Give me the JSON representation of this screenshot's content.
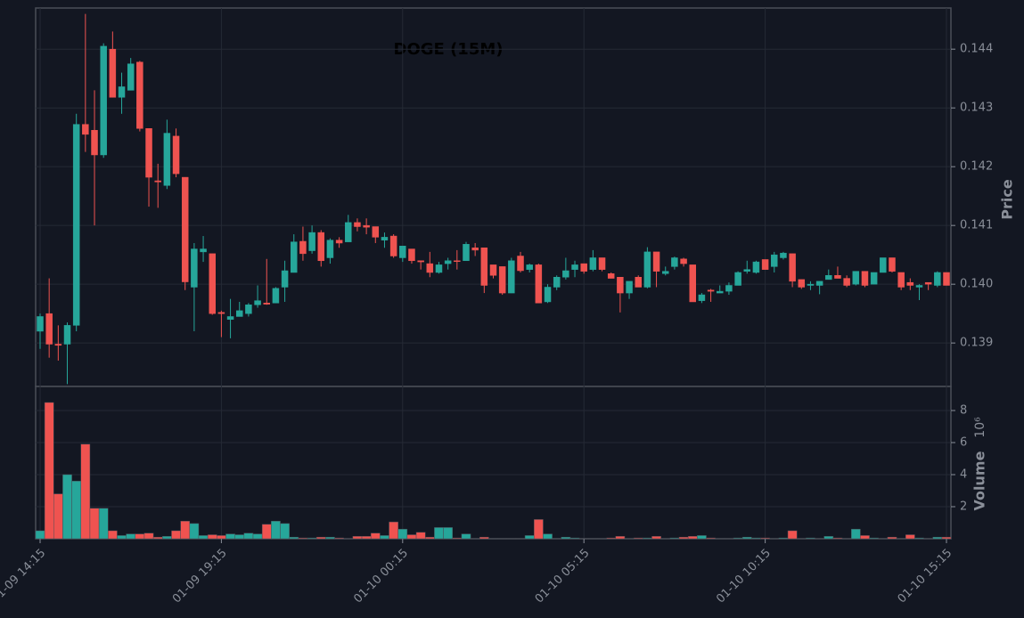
{
  "chart_data": {
    "type": "candlestick",
    "title": "DOGE (15M)",
    "ylabel": "Price",
    "y2label": "Volume",
    "y2unit": "10⁶",
    "up_color": "#26a69a",
    "down_color": "#ef5350",
    "grid": true,
    "categories": [
      "01-09 14:15",
      null,
      null,
      null,
      null,
      null,
      null,
      null,
      null,
      null,
      null,
      null,
      null,
      null,
      null,
      null,
      null,
      null,
      null,
      null,
      "01-09 19:15",
      null,
      null,
      null,
      null,
      null,
      null,
      null,
      null,
      null,
      null,
      null,
      null,
      null,
      null,
      null,
      null,
      null,
      null,
      null,
      "01-10 00:15",
      null,
      null,
      null,
      null,
      null,
      null,
      null,
      null,
      null,
      null,
      null,
      null,
      null,
      null,
      null,
      null,
      null,
      null,
      null,
      "01-10 05:15",
      null,
      null,
      null,
      null,
      null,
      null,
      null,
      null,
      null,
      null,
      null,
      null,
      null,
      null,
      null,
      null,
      null,
      null,
      null,
      "01-10 10:15",
      null,
      null,
      null,
      null,
      null,
      null,
      null,
      null,
      null,
      null,
      null,
      null,
      null,
      null,
      null,
      null,
      null,
      null,
      null,
      "01-10 15:15"
    ],
    "open": [
      0.1392,
      0.1395,
      0.13898,
      0.13898,
      0.1393,
      0.14272,
      0.14262,
      0.1422,
      0.144,
      0.14318,
      0.1433,
      0.14378,
      0.14265,
      0.14176,
      0.14168,
      0.14252,
      0.14182,
      0.13995,
      0.14055,
      0.14052,
      0.13952,
      0.1394,
      0.13945,
      0.1395,
      0.13965,
      0.13968,
      0.13968,
      0.13995,
      0.1402,
      0.14073,
      0.14057,
      0.14088,
      0.14045,
      0.14075,
      0.14072,
      0.14105,
      0.141,
      0.14098,
      0.14075,
      0.14082,
      0.14045,
      0.1406,
      0.1404,
      0.14035,
      0.1402,
      0.14035,
      0.1404,
      0.1404,
      0.14062,
      0.14062,
      0.14033,
      0.1403,
      0.13985,
      0.14048,
      0.14025,
      0.14033,
      0.1397,
      0.13995,
      0.14012,
      0.14025,
      0.14035,
      0.14025,
      0.14045,
      0.14018,
      0.14012,
      0.13985,
      0.14012,
      0.13995,
      0.14055,
      0.14018,
      0.1403,
      0.14043,
      0.14033,
      0.13972,
      0.1399,
      0.13985,
      0.13988,
      0.13998,
      0.14022,
      0.1402,
      0.14042,
      0.1403,
      0.14045,
      0.14052,
      0.14008,
      0.13998,
      0.13998,
      0.14008,
      0.14015,
      0.1401,
      0.14,
      0.14022,
      0.14,
      0.1402,
      0.14045,
      0.1402,
      0.14003,
      0.13995,
      0.14003,
      0.13998,
      0.1402
    ],
    "high": [
      0.1395,
      0.1401,
      0.1393,
      0.13935,
      0.1429,
      0.1446,
      0.1433,
      0.1441,
      0.1443,
      0.1436,
      0.14385,
      0.1438,
      0.14265,
      0.14205,
      0.1428,
      0.14265,
      0.14182,
      0.1407,
      0.14082,
      0.14052,
      0.13955,
      0.13975,
      0.1397,
      0.13968,
      0.13998,
      0.14043,
      0.13995,
      0.1404,
      0.14085,
      0.14098,
      0.141,
      0.14092,
      0.14078,
      0.1408,
      0.14118,
      0.14112,
      0.14112,
      0.14098,
      0.14088,
      0.14085,
      0.14065,
      0.1406,
      0.1404,
      0.14055,
      0.14038,
      0.14045,
      0.14058,
      0.14072,
      0.1407,
      0.14062,
      0.14033,
      0.1403,
      0.14045,
      0.14055,
      0.14035,
      0.14035,
      0.14,
      0.14015,
      0.14045,
      0.1404,
      0.14035,
      0.14058,
      0.14045,
      0.1402,
      0.14012,
      0.14005,
      0.14015,
      0.14063,
      0.14055,
      0.1403,
      0.14047,
      0.14045,
      0.14033,
      0.13985,
      0.13992,
      0.13998,
      0.14003,
      0.14022,
      0.1404,
      0.1404,
      0.14042,
      0.14055,
      0.14055,
      0.14052,
      0.14008,
      0.14005,
      0.14005,
      0.14025,
      0.1403,
      0.14015,
      0.14022,
      0.14022,
      0.1402,
      0.14045,
      0.14045,
      0.1402,
      0.1401,
      0.14,
      0.14003,
      0.14022,
      0.1402
    ],
    "low": [
      0.1389,
      0.13875,
      0.1387,
      0.1383,
      0.1392,
      0.14225,
      0.141,
      0.14215,
      0.14318,
      0.1429,
      0.1433,
      0.1426,
      0.14132,
      0.1413,
      0.14162,
      0.14182,
      0.1399,
      0.1392,
      0.14038,
      0.13948,
      0.1391,
      0.13908,
      0.13945,
      0.13945,
      0.1396,
      0.13965,
      0.13968,
      0.1397,
      0.1402,
      0.1404,
      0.14052,
      0.1403,
      0.14035,
      0.14062,
      0.14072,
      0.1409,
      0.14085,
      0.1407,
      0.14062,
      0.14045,
      0.14038,
      0.14035,
      0.14025,
      0.14012,
      0.14018,
      0.14025,
      0.14025,
      0.1404,
      0.14048,
      0.13985,
      0.1401,
      0.13982,
      0.13985,
      0.1402,
      0.1402,
      0.13968,
      0.13968,
      0.1399,
      0.14008,
      0.14012,
      0.14018,
      0.14022,
      0.14022,
      0.1401,
      0.13952,
      0.13975,
      0.13995,
      0.13993,
      0.13995,
      0.14015,
      0.14025,
      0.1403,
      0.1397,
      0.13968,
      0.1397,
      0.13985,
      0.13982,
      0.13998,
      0.14018,
      0.14018,
      0.14025,
      0.1402,
      0.14042,
      0.13995,
      0.13992,
      0.1399,
      0.13983,
      0.14008,
      0.1401,
      0.13995,
      0.13998,
      0.13995,
      0.14,
      0.1402,
      0.1402,
      0.1399,
      0.1399,
      0.13973,
      0.1399,
      0.13995,
      0.13998
    ],
    "close": [
      0.13945,
      0.13898,
      0.13896,
      0.1393,
      0.14272,
      0.14255,
      0.1422,
      0.14405,
      0.14318,
      0.14336,
      0.14375,
      0.14265,
      0.14182,
      0.14174,
      0.14257,
      0.14188,
      0.14004,
      0.1406,
      0.1406,
      0.1395,
      0.1395,
      0.13945,
      0.13955,
      0.13965,
      0.13972,
      0.13966,
      0.13993,
      0.14023,
      0.14072,
      0.14052,
      0.14088,
      0.1404,
      0.14075,
      0.1407,
      0.14105,
      0.14098,
      0.14097,
      0.1408,
      0.1408,
      0.14048,
      0.14065,
      0.1404,
      0.14038,
      0.1402,
      0.14033,
      0.1404,
      0.14039,
      0.14068,
      0.14058,
      0.13998,
      0.14015,
      0.13985,
      0.1404,
      0.14023,
      0.14033,
      0.13968,
      0.13995,
      0.14012,
      0.14023,
      0.14033,
      0.14022,
      0.14045,
      0.14025,
      0.1401,
      0.13985,
      0.14005,
      0.13995,
      0.14055,
      0.14022,
      0.14022,
      0.14045,
      0.14035,
      0.1397,
      0.13982,
      0.13988,
      0.13988,
      0.13998,
      0.1402,
      0.14025,
      0.14038,
      0.14025,
      0.1405,
      0.14053,
      0.14005,
      0.13995,
      0.14,
      0.14005,
      0.14015,
      0.1401,
      0.13998,
      0.14022,
      0.13998,
      0.1402,
      0.14045,
      0.14022,
      0.13995,
      0.13998,
      0.13998,
      0.14,
      0.1402,
      0.13998
    ],
    "volume": [
      0.5,
      8.5,
      2.8,
      4.0,
      3.6,
      5.9,
      1.9,
      1.9,
      0.5,
      0.2,
      0.3,
      0.3,
      0.35,
      0.1,
      0.15,
      0.5,
      1.1,
      0.95,
      0.2,
      0.25,
      0.2,
      0.3,
      0.25,
      0.35,
      0.3,
      0.9,
      1.1,
      0.95,
      0.1,
      0.05,
      0.05,
      0.1,
      0.1,
      0.05,
      0.0,
      0.15,
      0.15,
      0.35,
      0.2,
      1.05,
      0.6,
      0.25,
      0.4,
      0.1,
      0.7,
      0.7,
      0.05,
      0.3,
      0.02,
      0.1,
      0.02,
      0.02,
      0.02,
      0.02,
      0.2,
      1.2,
      0.3,
      0.02,
      0.1,
      0.05,
      0.02,
      0.02,
      0.02,
      0.05,
      0.15,
      0.02,
      0.05,
      0.05,
      0.15,
      0.02,
      0.05,
      0.1,
      0.15,
      0.2,
      0.05,
      0.02,
      0.02,
      0.05,
      0.1,
      0.05,
      0.05,
      0.02,
      0.05,
      0.5,
      0.02,
      0.05,
      0.02,
      0.15,
      0.05,
      0.02,
      0.6,
      0.2,
      0.05,
      0.02,
      0.1,
      0.02,
      0.25,
      0.05,
      0.02,
      0.1,
      0.1
    ],
    "ylim": [
      0.13826,
      0.1447
    ],
    "yticks": [
      0.139,
      0.14,
      0.141,
      0.142,
      0.143,
      0.144
    ],
    "yticklabels": [
      "0.139",
      "0.140",
      "0.141",
      "0.142",
      "0.143",
      "0.144"
    ],
    "y2lim": [
      0,
      9.5
    ],
    "y2ticks": [
      2,
      4,
      6,
      8
    ]
  }
}
